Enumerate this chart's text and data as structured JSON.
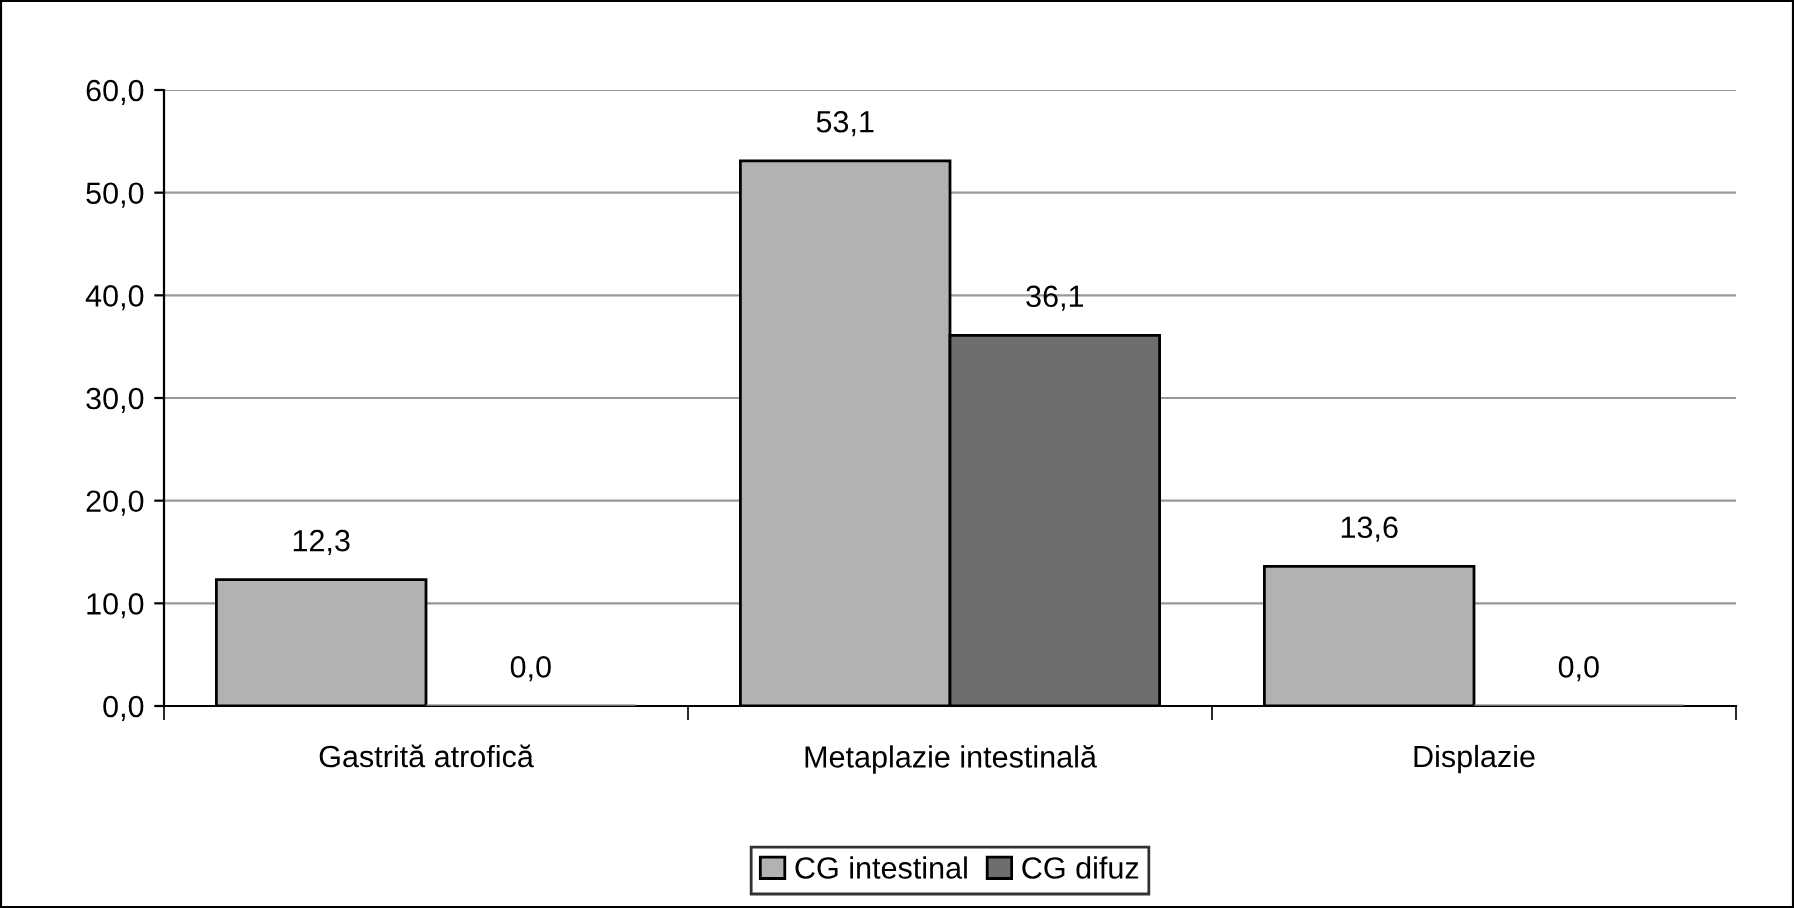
{
  "chart_data": {
    "type": "bar",
    "categories": [
      "Gastrită atrofică",
      "Metaplazie intestinală",
      "Displazie"
    ],
    "series": [
      {
        "name": "CG intestinal",
        "color": "#b2b2b2",
        "values": [
          12.3,
          53.1,
          13.6
        ],
        "value_labels": [
          "12,3",
          "53,1",
          "13,6"
        ]
      },
      {
        "name": "CG difuz",
        "color": "#6e6e6e",
        "values": [
          0.0,
          36.1,
          0.0
        ],
        "value_labels": [
          "0,0",
          "36,1",
          "0,0"
        ]
      }
    ],
    "ylim": [
      0,
      60
    ],
    "yticks": [
      {
        "value": 0,
        "label": "0,0"
      },
      {
        "value": 10,
        "label": "10,0"
      },
      {
        "value": 20,
        "label": "20,0"
      },
      {
        "value": 30,
        "label": "30,0"
      },
      {
        "value": 40,
        "label": "40,0"
      },
      {
        "value": 50,
        "label": "50,0"
      },
      {
        "value": 60,
        "label": "60,0"
      }
    ],
    "grid": "y",
    "legend": "bottom"
  }
}
